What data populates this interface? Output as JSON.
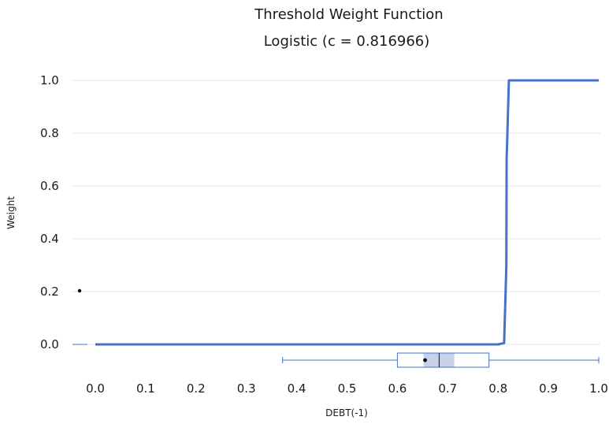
{
  "chart_data": {
    "type": "line",
    "title": "Threshold Weight Function",
    "subtitle": "Logistic (c = 0.816966)",
    "xlabel": "DEBT(-1)",
    "ylabel": "Weight",
    "xlim": [
      -0.04,
      1.0
    ],
    "ylim": [
      0.0,
      1.0
    ],
    "x_ticks": [
      "0.0",
      "0.1",
      "0.2",
      "0.3",
      "0.4",
      "0.5",
      "0.6",
      "0.7",
      "0.8",
      "0.9",
      "1.0"
    ],
    "y_ticks": [
      "0.0",
      "0.2",
      "0.4",
      "0.6",
      "0.8",
      "1.0"
    ],
    "grid": true,
    "line_color": "#4472c4",
    "series": [
      {
        "x": [
          0.0,
          0.6,
          0.8,
          0.812,
          0.8165,
          0.817,
          0.8215,
          0.83,
          1.0
        ],
        "y": [
          0.0,
          0.0,
          0.0,
          0.005,
          0.3,
          0.7,
          1.0,
          1.0,
          1.0
        ]
      }
    ],
    "boxplot": {
      "whisker_min": 0.372,
      "q1": 0.6,
      "median": 0.683,
      "mean": 0.655,
      "q3": 0.782,
      "whisker_max": 1.0,
      "ci_low": 0.652,
      "ci_high": 0.713,
      "color": "#4472c4",
      "ci_color": "#c7d2e8"
    }
  }
}
